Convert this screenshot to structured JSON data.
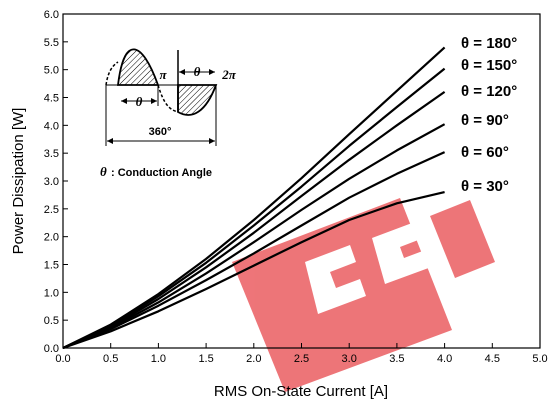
{
  "chart_data": {
    "type": "line",
    "xlabel": "RMS On-State Current [A]",
    "ylabel": "Power Dissipation [W]",
    "xlim": [
      0,
      5
    ],
    "ylim": [
      0,
      6
    ],
    "x_ticks": [
      "0.0",
      "0.5",
      "1.0",
      "1.5",
      "2.0",
      "2.5",
      "3.0",
      "3.5",
      "4.0",
      "4.5",
      "5.0"
    ],
    "y_ticks": [
      "0.0",
      "0.5",
      "1.0",
      "1.5",
      "2.0",
      "2.5",
      "3.0",
      "3.5",
      "4.0",
      "4.5",
      "5.0",
      "5.5",
      "6.0"
    ],
    "grid": false,
    "series": [
      {
        "name": "θ = 180°",
        "x": [
          0,
          0.5,
          1,
          1.5,
          2,
          2.5,
          3,
          3.5,
          4
        ],
        "y": [
          0,
          0.42,
          0.97,
          1.6,
          2.3,
          3.05,
          3.84,
          4.62,
          5.4
        ]
      },
      {
        "name": "θ = 150°",
        "x": [
          0,
          0.5,
          1,
          1.5,
          2,
          2.5,
          3,
          3.5,
          4
        ],
        "y": [
          0,
          0.4,
          0.93,
          1.53,
          2.2,
          2.9,
          3.63,
          4.33,
          5.02
        ]
      },
      {
        "name": "θ = 120°",
        "x": [
          0,
          0.5,
          1,
          1.5,
          2,
          2.5,
          3,
          3.5,
          4
        ],
        "y": [
          0,
          0.38,
          0.88,
          1.45,
          2.07,
          2.73,
          3.38,
          4.0,
          4.6
        ]
      },
      {
        "name": "θ = 90°",
        "x": [
          0,
          0.5,
          1,
          1.5,
          2,
          2.5,
          3,
          3.5,
          4
        ],
        "y": [
          0,
          0.36,
          0.82,
          1.34,
          1.9,
          2.48,
          3.04,
          3.55,
          4.02
        ]
      },
      {
        "name": "θ = 60°",
        "x": [
          0,
          0.5,
          1,
          1.5,
          2,
          2.5,
          3,
          3.5,
          4
        ],
        "y": [
          0,
          0.34,
          0.76,
          1.22,
          1.7,
          2.2,
          2.7,
          3.13,
          3.52
        ]
      },
      {
        "name": "θ = 30°",
        "x": [
          0,
          0.5,
          1,
          1.5,
          2,
          2.5,
          3,
          3.5,
          4
        ],
        "y": [
          0,
          0.3,
          0.66,
          1.06,
          1.48,
          1.9,
          2.3,
          2.6,
          2.8
        ]
      }
    ],
    "inset": {
      "label_360": "360°",
      "theta": "θ",
      "pi": "π",
      "two_pi": "2π",
      "caption": ": Conduction Angle"
    }
  },
  "colors": {
    "line": "#000000",
    "watermark": "#e8474c"
  }
}
